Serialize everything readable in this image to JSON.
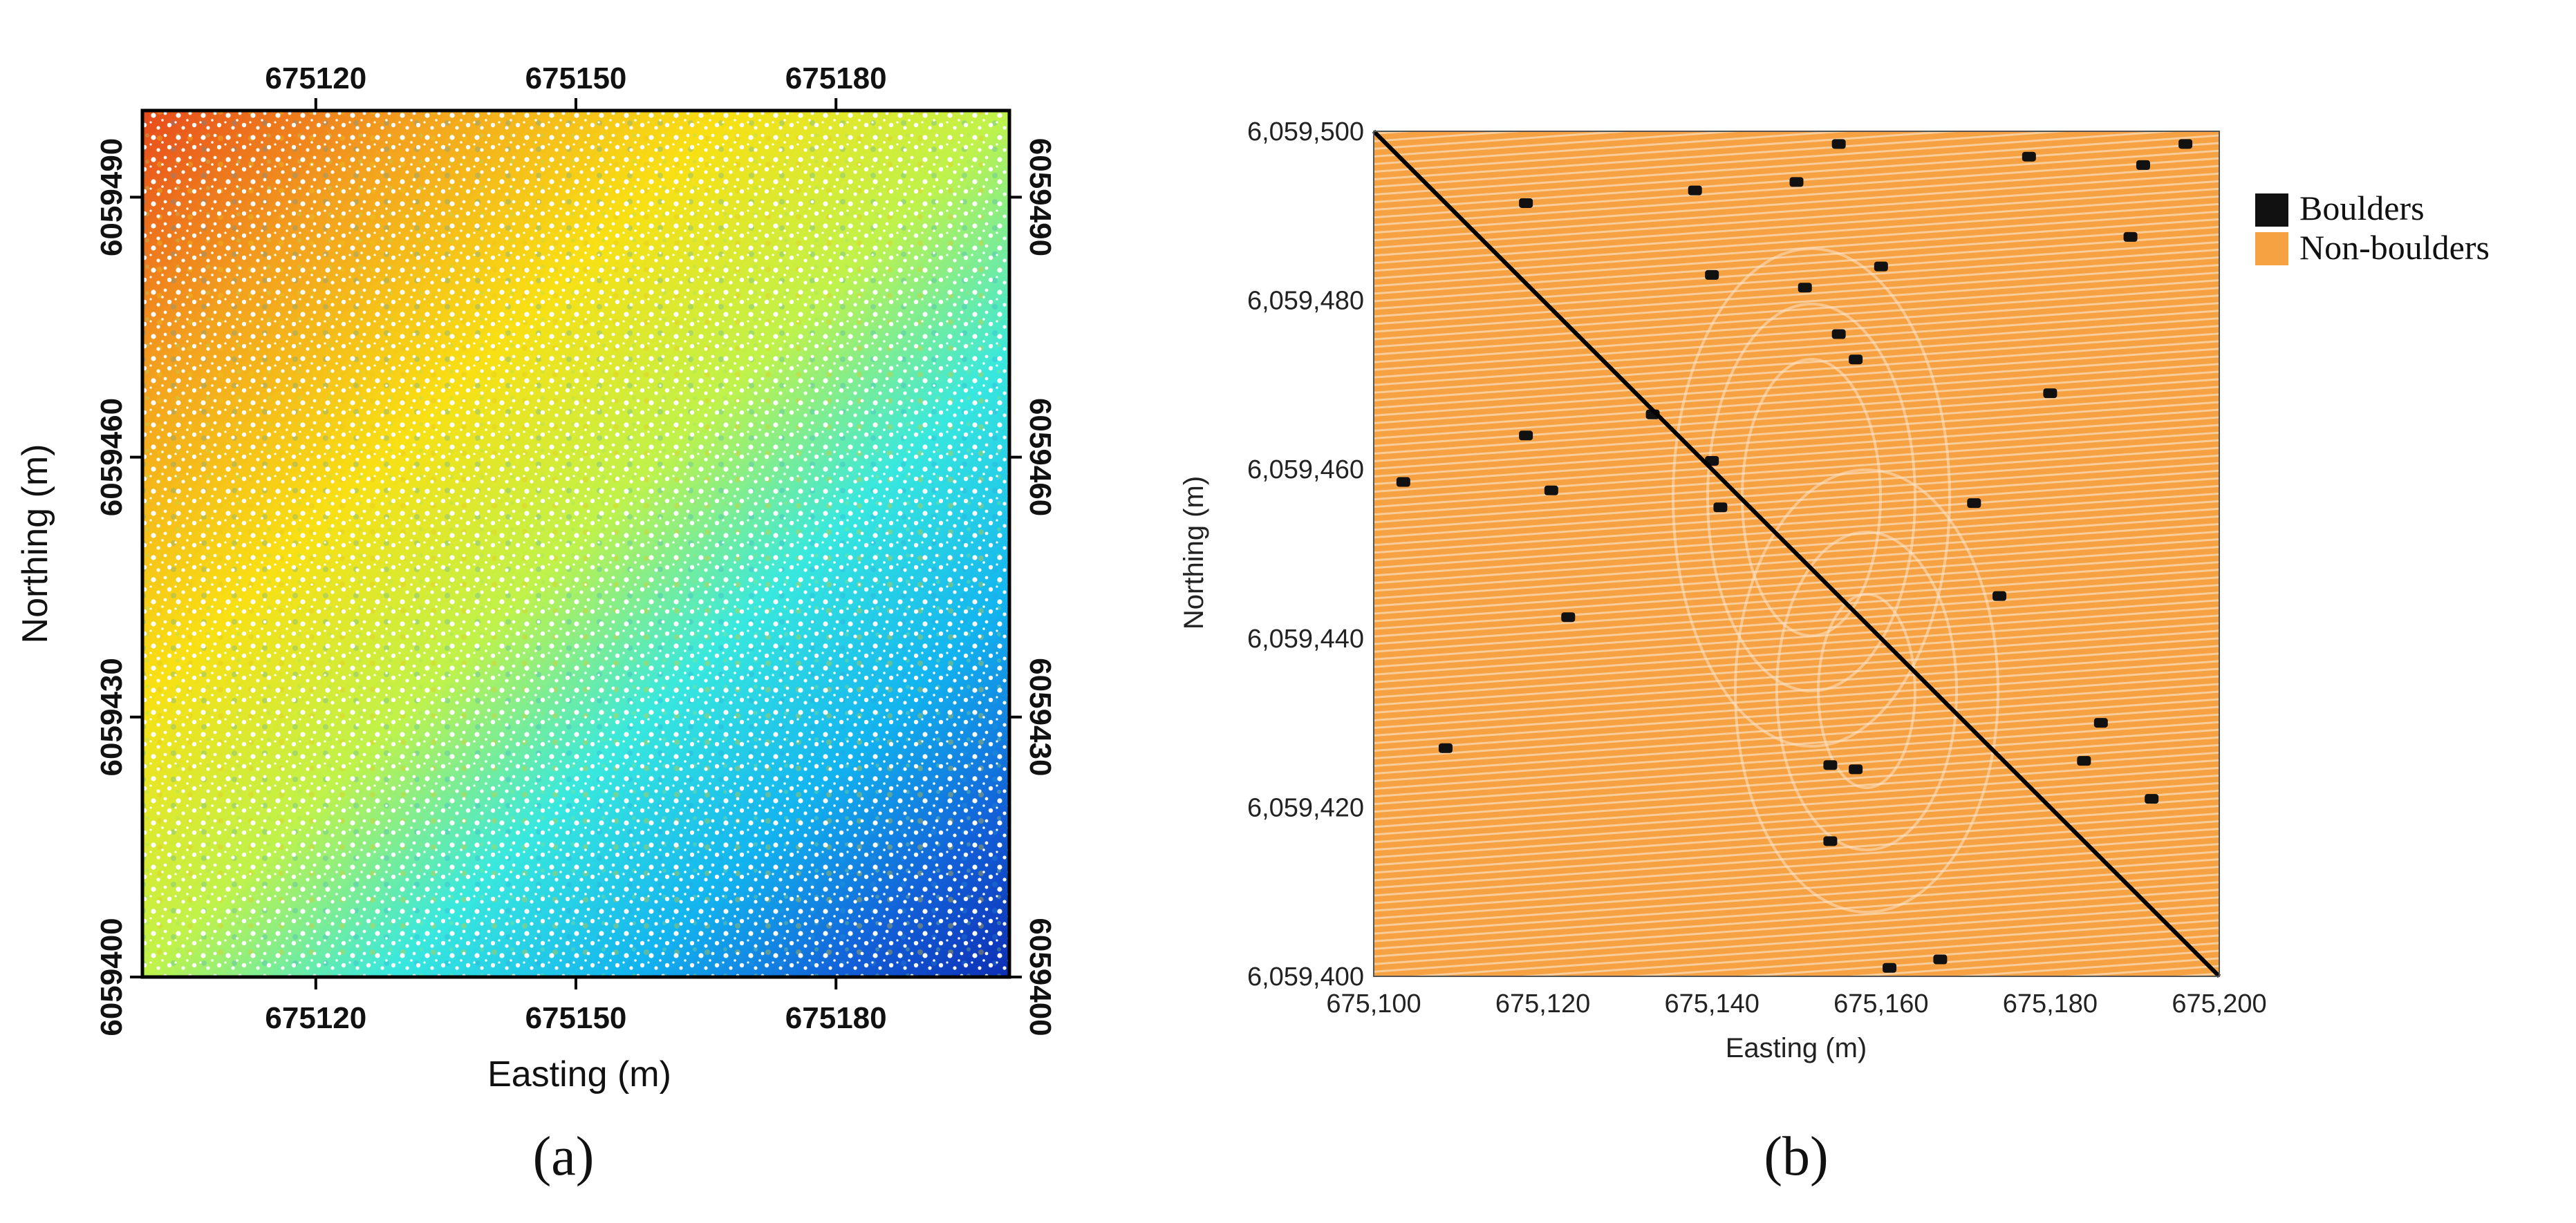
{
  "panel_a": {
    "caption": "(a)",
    "x_axis": {
      "label": "Easting (m)",
      "ticks": [
        675120,
        675150,
        675180
      ],
      "tick_labels": [
        "675120",
        "675150",
        "675180"
      ],
      "range": [
        675100,
        675200
      ]
    },
    "y_axis": {
      "label": "Northing (m)",
      "ticks": [
        6059400,
        6059430,
        6059460,
        6059490
      ],
      "tick_labels": [
        "6059400",
        "6059430",
        "6059460",
        "6059490"
      ],
      "range": [
        6059400,
        6059500
      ]
    },
    "color_ramp": [
      "#e84a1b",
      "#f3a11e",
      "#f8e013",
      "#bff24a",
      "#38e8de",
      "#12b4ef",
      "#1260d8",
      "#0d2eb4"
    ]
  },
  "panel_b": {
    "caption": "(b)",
    "x_axis": {
      "label": "Easting (m)",
      "ticks": [
        675100,
        675120,
        675140,
        675160,
        675180,
        675200
      ],
      "tick_labels": [
        "675,100",
        "675,120",
        "675,140",
        "675,160",
        "675,180",
        "675,200"
      ],
      "range": [
        675100,
        675200
      ]
    },
    "y_axis": {
      "label": "Northing (m)",
      "ticks": [
        6059400,
        6059420,
        6059440,
        6059460,
        6059480,
        6059500
      ],
      "tick_labels": [
        "6,059,400",
        "6,059,420",
        "6,059,440",
        "6,059,460",
        "6,059,480",
        "6,059,500"
      ],
      "range": [
        6059400,
        6059500
      ]
    },
    "legend": [
      {
        "label": "Boulders",
        "color": "#111111"
      },
      {
        "label": "Non-boulders",
        "color": "#f6a142"
      }
    ],
    "diagonal_line": {
      "from": [
        675100,
        6059500
      ],
      "to": [
        675200,
        6059400
      ],
      "color": "#000000"
    },
    "boulders": [
      [
        675118,
        6059491.5
      ],
      [
        675138,
        6059493
      ],
      [
        675150,
        6059494
      ],
      [
        675155,
        6059498.5
      ],
      [
        675177.5,
        6059497
      ],
      [
        675191,
        6059496
      ],
      [
        675196,
        6059498.5
      ],
      [
        675140,
        6059483
      ],
      [
        675151,
        6059481.5
      ],
      [
        675160,
        6059484
      ],
      [
        675189.5,
        6059487.5
      ],
      [
        675155,
        6059476
      ],
      [
        675157,
        6059473
      ],
      [
        675180,
        6059469
      ],
      [
        675133,
        6059466.5
      ],
      [
        675118,
        6059464
      ],
      [
        675140,
        6059461
      ],
      [
        675103.5,
        6059458.5
      ],
      [
        675121,
        6059457.5
      ],
      [
        675141,
        6059455.5
      ],
      [
        675171,
        6059456
      ],
      [
        675174,
        6059445
      ],
      [
        675123,
        6059442.5
      ],
      [
        675186,
        6059430
      ],
      [
        675108.5,
        6059427
      ],
      [
        675157,
        6059424.5
      ],
      [
        675154,
        6059425
      ],
      [
        675184,
        6059425.5
      ],
      [
        675192,
        6059421
      ],
      [
        675154,
        6059416
      ],
      [
        675167,
        6059402
      ],
      [
        675161,
        6059401
      ]
    ]
  }
}
